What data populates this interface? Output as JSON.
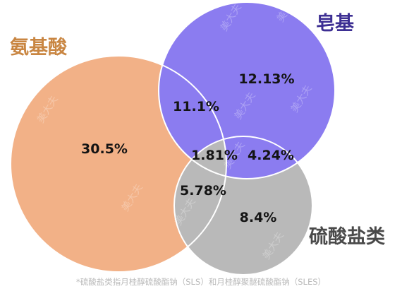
{
  "sets": {
    "amino_acid": {
      "label": "氨基酸",
      "color": "#f2b187",
      "label_color": "#c98642"
    },
    "soap_base": {
      "label": "皂基",
      "color": "#8b7cf0",
      "label_color": "#3d2f93"
    },
    "sulfate": {
      "label": "硫酸盐类",
      "color": "#b9b9b9",
      "label_color": "#4a4a4a"
    }
  },
  "regions": {
    "amino_only": "30.5%",
    "soap_only": "12.13%",
    "sulfate_only": "8.4%",
    "amino_soap": "11.1%",
    "soap_sulfate": "4.24%",
    "amino_sulfate": "5.78%",
    "all_three": "1.81%"
  },
  "watermark": "美大夫",
  "footnote": "*硫酸盐类指月桂醇硫酸酯钠（SLS）和月桂醇聚醚硫酸酯钠（SLES）"
}
